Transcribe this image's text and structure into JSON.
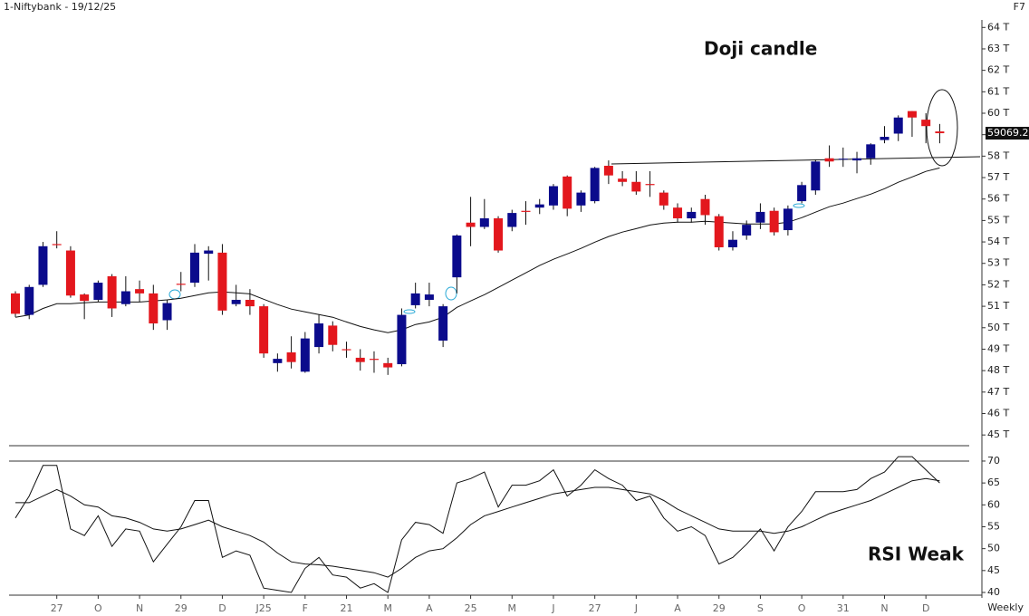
{
  "title": "1-Niftybank - 19/12/25",
  "hotkey": "F7",
  "period": "Weekly",
  "chart_data": [
    {
      "type": "candlestick",
      "annotation": "Doji candle",
      "up_color": "#0b0b8c",
      "down_color": "#e3171d",
      "categories": [
        null,
        null,
        null,
        "27",
        null,
        null,
        "O",
        null,
        null,
        "N",
        null,
        null,
        "29",
        null,
        null,
        "D",
        null,
        null,
        "J25",
        null,
        null,
        "F",
        null,
        null,
        "21",
        null,
        null,
        "M",
        null,
        null,
        "A",
        null,
        null,
        "25",
        null,
        null,
        "M",
        null,
        null,
        "J",
        null,
        null,
        "27",
        null,
        null,
        "J",
        null,
        null,
        "A",
        null,
        null,
        "29",
        null,
        null,
        "S",
        null,
        null,
        "O",
        null,
        null,
        "31",
        null,
        null,
        "N",
        null,
        null,
        "D",
        null
      ],
      "open": [
        51.6,
        50.6,
        52.0,
        53.9,
        53.6,
        51.55,
        51.3,
        52.4,
        51.1,
        51.8,
        51.6,
        50.35,
        52.05,
        52.1,
        53.45,
        53.5,
        51.1,
        51.3,
        51.0,
        48.35,
        48.85,
        47.95,
        49.1,
        50.1,
        49.0,
        48.6,
        48.55,
        48.35,
        48.3,
        51.05,
        51.3,
        49.4,
        52.35,
        54.9,
        54.7,
        55.1,
        54.7,
        55.45,
        55.6,
        55.7,
        57.05,
        55.7,
        55.9,
        57.55,
        56.95,
        56.8,
        56.7,
        56.3,
        55.6,
        55.1,
        56.0,
        55.2,
        53.75,
        54.3,
        54.9,
        55.45,
        54.55,
        55.9,
        56.4,
        57.9,
        57.85,
        57.8,
        57.9,
        58.75,
        59.05,
        60.1,
        59.7,
        59.15
      ],
      "high": [
        51.7,
        52.0,
        54.0,
        54.5,
        53.8,
        51.6,
        52.2,
        52.5,
        52.4,
        52.2,
        52.0,
        51.3,
        52.6,
        53.9,
        53.8,
        53.9,
        52.0,
        51.8,
        51.1,
        48.8,
        49.6,
        49.8,
        50.6,
        50.3,
        49.35,
        49.0,
        48.9,
        48.6,
        50.9,
        52.1,
        52.1,
        51.1,
        54.35,
        56.1,
        56.0,
        55.2,
        55.5,
        55.9,
        56.0,
        56.7,
        57.1,
        56.4,
        57.5,
        57.8,
        57.3,
        57.3,
        57.3,
        56.4,
        55.8,
        55.6,
        56.2,
        55.3,
        54.5,
        55.0,
        55.8,
        55.6,
        55.7,
        56.8,
        57.85,
        58.5,
        58.4,
        58.2,
        58.6,
        59.4,
        59.9,
        60.1,
        60.0,
        59.5
      ],
      "low": [
        50.5,
        50.4,
        51.9,
        53.7,
        51.4,
        50.4,
        51.2,
        50.5,
        51.0,
        51.2,
        49.9,
        49.9,
        51.7,
        51.9,
        52.2,
        50.6,
        51.0,
        50.6,
        48.6,
        47.95,
        48.1,
        47.9,
        48.8,
        48.9,
        48.6,
        48.0,
        47.9,
        47.8,
        48.2,
        50.9,
        51.0,
        49.1,
        51.6,
        53.8,
        54.6,
        53.5,
        54.5,
        54.8,
        55.3,
        55.5,
        55.2,
        55.4,
        55.8,
        56.7,
        56.6,
        56.2,
        56.1,
        55.5,
        54.9,
        54.9,
        54.8,
        53.6,
        53.6,
        54.1,
        54.6,
        54.3,
        54.3,
        55.8,
        56.2,
        57.5,
        57.5,
        57.2,
        57.6,
        58.6,
        58.7,
        58.9,
        58.6,
        58.6
      ],
      "close": [
        50.65,
        51.9,
        53.8,
        53.85,
        51.5,
        51.25,
        52.1,
        50.9,
        51.7,
        51.6,
        50.2,
        51.15,
        52.0,
        53.5,
        53.6,
        50.8,
        51.3,
        51.0,
        48.8,
        48.55,
        48.4,
        49.5,
        50.2,
        49.2,
        48.95,
        48.4,
        48.5,
        48.15,
        50.6,
        51.6,
        51.55,
        51.0,
        54.3,
        54.7,
        55.1,
        53.6,
        55.35,
        55.4,
        55.75,
        56.6,
        55.55,
        56.3,
        57.45,
        57.1,
        56.8,
        56.35,
        56.65,
        55.7,
        55.1,
        55.4,
        55.25,
        53.75,
        54.1,
        54.8,
        55.4,
        54.45,
        55.55,
        56.65,
        57.75,
        57.75,
        57.88,
        57.9,
        58.55,
        58.9,
        59.8,
        59.8,
        59.4,
        59.0692
      ],
      "series": [
        {
          "color": "#111111",
          "values": [
            50.49,
            50.6,
            50.9,
            51.12,
            51.12,
            51.16,
            51.2,
            51.2,
            51.2,
            51.2,
            51.25,
            51.3,
            51.37,
            51.5,
            51.63,
            51.67,
            51.63,
            51.58,
            51.33,
            51.08,
            50.87,
            50.74,
            50.61,
            50.49,
            50.27,
            50.06,
            49.9,
            49.77,
            49.9,
            50.15,
            50.27,
            50.49,
            50.95,
            51.25,
            51.54,
            51.88,
            52.22,
            52.56,
            52.9,
            53.19,
            53.44,
            53.7,
            53.99,
            54.25,
            54.46,
            54.62,
            54.79,
            54.88,
            54.92,
            54.92,
            54.96,
            54.92,
            54.88,
            54.84,
            54.84,
            54.84,
            54.92,
            55.13,
            55.39,
            55.64,
            55.81,
            56.02,
            56.23,
            56.48,
            56.78,
            57.03,
            57.29,
            57.45
          ]
        }
      ],
      "last_price": {
        "value": 59.0692,
        "label": "59069.2"
      },
      "ylim": [
        44.5,
        64.35
      ],
      "yticks": [
        {
          "value": 45,
          "label": "45 T"
        },
        {
          "value": 46,
          "label": "46 T"
        },
        {
          "value": 47,
          "label": "47 T"
        },
        {
          "value": 48,
          "label": "48 T"
        },
        {
          "value": 49,
          "label": "49 T"
        },
        {
          "value": 50,
          "label": "50 T"
        },
        {
          "value": 51,
          "label": "51 T"
        },
        {
          "value": 52,
          "label": "52 T"
        },
        {
          "value": 53,
          "label": "53 T"
        },
        {
          "value": 54,
          "label": "54 T"
        },
        {
          "value": 55,
          "label": "55 T"
        },
        {
          "value": 56,
          "label": "56 T"
        },
        {
          "value": 57,
          "label": "57 T"
        },
        {
          "value": 58,
          "label": "58 T"
        },
        {
          "value": 59,
          "label": "59 T"
        },
        {
          "value": 60,
          "label": "60 T"
        },
        {
          "value": 61,
          "label": "61 T"
        },
        {
          "value": 62,
          "label": "62 T"
        },
        {
          "value": 63,
          "label": "63 T"
        },
        {
          "value": 64,
          "label": "64 T"
        }
      ]
    },
    {
      "type": "line",
      "annotation": "RSI Weak",
      "series": [
        {
          "color": "#111111",
          "values": [
            57,
            62,
            69,
            69,
            54.5,
            53,
            57.5,
            50.5,
            54.5,
            54,
            47,
            51,
            55,
            61,
            61,
            48,
            49.5,
            48.5,
            41,
            40.5,
            40,
            45.5,
            48,
            44,
            43.5,
            41,
            42,
            40,
            52,
            56,
            55.5,
            53.5,
            65,
            66,
            67.5,
            59.5,
            64.5,
            64.5,
            65.5,
            68,
            62,
            64.5,
            68,
            66,
            64.5,
            61,
            62,
            57,
            54,
            55,
            53,
            46.5,
            48,
            51,
            54.5,
            49.5,
            55,
            58.5,
            63,
            63,
            63,
            63.5,
            66,
            67.5,
            71,
            71,
            68,
            65
          ]
        },
        {
          "color": "#111111",
          "values": [
            60.5,
            60.5,
            62,
            63.5,
            62,
            60,
            59.5,
            57.5,
            57,
            56,
            54.5,
            54,
            54.5,
            55.5,
            56.5,
            55,
            54,
            53,
            51.5,
            49,
            47,
            46.5,
            46.3,
            46,
            45.5,
            45,
            44.5,
            43.5,
            45.5,
            48,
            49.5,
            50,
            52.5,
            55.5,
            57.5,
            58.5,
            59.5,
            60.5,
            61.5,
            62.5,
            63,
            63.5,
            64,
            64,
            63.5,
            63,
            62.5,
            61,
            59,
            57.5,
            56,
            54.5,
            54,
            54,
            54,
            53.5,
            54,
            55,
            56.5,
            58,
            59,
            60,
            61,
            62.5,
            64,
            65.5,
            66,
            65.5
          ]
        }
      ],
      "ylim": [
        39.4,
        70.8
      ],
      "yticks": [
        40,
        45,
        50,
        55,
        60,
        65,
        70
      ]
    }
  ]
}
